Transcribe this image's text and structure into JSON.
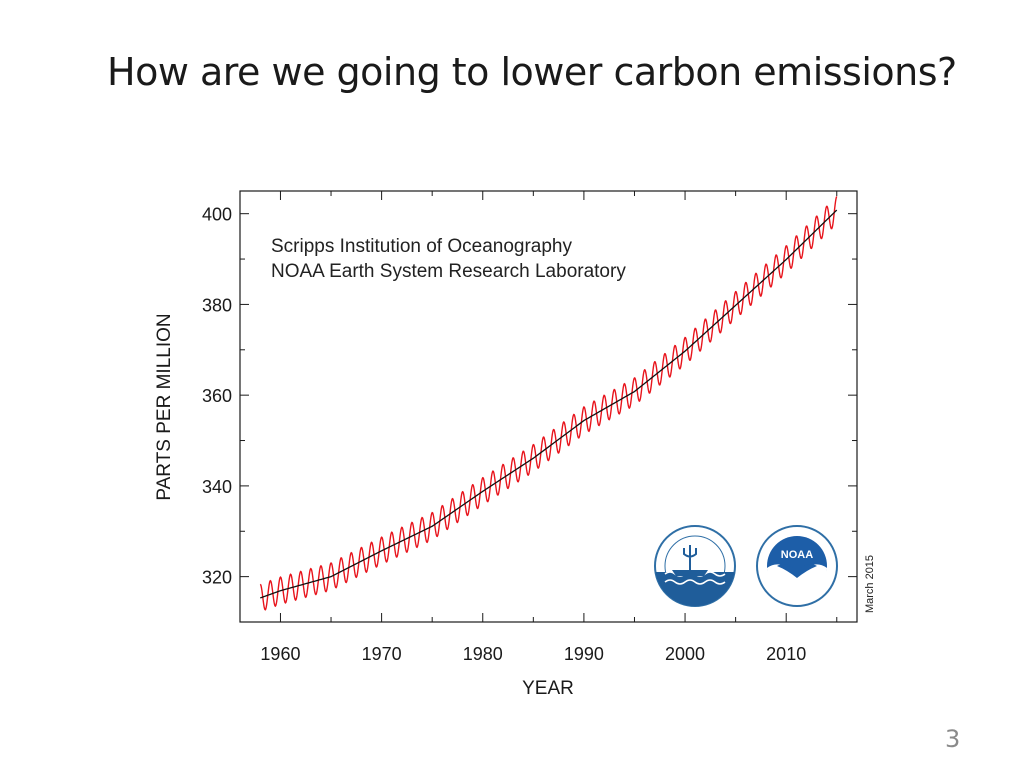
{
  "slide": {
    "title": "How are we going to lower carbon emissions?",
    "page_number": "3"
  },
  "chart_data": {
    "type": "line",
    "title": "",
    "xlabel": "YEAR",
    "ylabel": "PARTS PER MILLION",
    "xlim": [
      1956,
      2017
    ],
    "ylim": [
      310,
      405
    ],
    "x_ticks": [
      1960,
      1970,
      1980,
      1990,
      2000,
      2010
    ],
    "y_ticks": [
      320,
      340,
      360,
      380,
      400
    ],
    "annotations": [
      "Scripps Institution of Oceanography",
      "NOAA Earth System Research Laboratory"
    ],
    "date_stamp": "March 2015",
    "logos": [
      "scripps-logo",
      "noaa-logo"
    ],
    "seasonal_amplitude_ppm": 3,
    "series": [
      {
        "name": "monthly",
        "color": "#e8141c",
        "seasonal": true,
        "x": [
          1958,
          1960,
          1965,
          1970,
          1975,
          1980,
          1985,
          1990,
          1995,
          2000,
          2005,
          2010,
          2015
        ],
        "values": [
          315.3,
          316.9,
          320.0,
          325.7,
          331.1,
          338.8,
          346.1,
          354.4,
          360.8,
          369.7,
          379.8,
          389.9,
          400.8
        ]
      },
      {
        "name": "trend",
        "color": "#111111",
        "seasonal": false,
        "x": [
          1958,
          1960,
          1965,
          1970,
          1975,
          1980,
          1985,
          1990,
          1995,
          2000,
          2005,
          2010,
          2015
        ],
        "values": [
          315.3,
          316.9,
          320.0,
          325.7,
          331.1,
          338.8,
          346.1,
          354.4,
          360.8,
          369.7,
          379.8,
          389.9,
          400.8
        ]
      }
    ]
  }
}
